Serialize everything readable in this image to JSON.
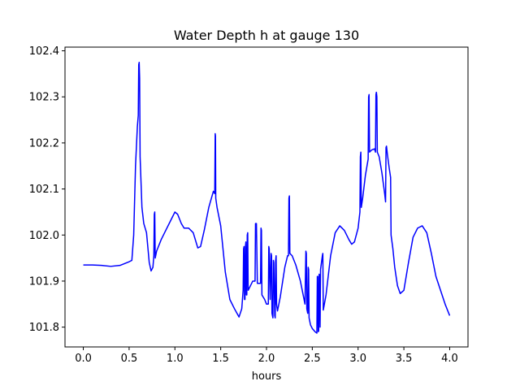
{
  "chart_data": {
    "type": "line",
    "title": "Water Depth h at gauge 130",
    "xlabel": "hours",
    "ylabel": "",
    "xlim": [
      -0.2,
      4.2
    ],
    "ylim": [
      101.757,
      102.408
    ],
    "x_ticks": [
      0.0,
      0.5,
      1.0,
      1.5,
      2.0,
      2.5,
      3.0,
      3.5,
      4.0
    ],
    "x_tick_labels": [
      "0.0",
      "0.5",
      "1.0",
      "1.5",
      "2.0",
      "2.5",
      "3.0",
      "3.5",
      "4.0"
    ],
    "y_ticks": [
      101.8,
      101.9,
      102.0,
      102.1,
      102.2,
      102.3,
      102.4
    ],
    "y_tick_labels": [
      "101.8",
      "101.9",
      "102.0",
      "102.1",
      "102.2",
      "102.3",
      "102.4"
    ],
    "grid": false,
    "legend": "none",
    "series": [
      {
        "color": "#0000ff",
        "points": [
          [
            0.0,
            101.935
          ],
          [
            0.1,
            101.935
          ],
          [
            0.2,
            101.934
          ],
          [
            0.3,
            101.932
          ],
          [
            0.4,
            101.934
          ],
          [
            0.45,
            101.938
          ],
          [
            0.5,
            101.942
          ],
          [
            0.53,
            101.945
          ],
          [
            0.55,
            102.0
          ],
          [
            0.57,
            102.15
          ],
          [
            0.59,
            102.235
          ],
          [
            0.6,
            102.26
          ],
          [
            0.605,
            102.37
          ],
          [
            0.61,
            102.375
          ],
          [
            0.615,
            102.34
          ],
          [
            0.62,
            102.17
          ],
          [
            0.64,
            102.06
          ],
          [
            0.66,
            102.025
          ],
          [
            0.69,
            102.005
          ],
          [
            0.72,
            101.94
          ],
          [
            0.74,
            101.922
          ],
          [
            0.76,
            101.93
          ],
          [
            0.77,
            101.955
          ],
          [
            0.775,
            102.045
          ],
          [
            0.78,
            102.05
          ],
          [
            0.785,
            101.95
          ],
          [
            0.8,
            101.965
          ],
          [
            0.85,
            101.99
          ],
          [
            0.9,
            102.01
          ],
          [
            0.95,
            102.03
          ],
          [
            1.0,
            102.05
          ],
          [
            1.03,
            102.045
          ],
          [
            1.07,
            102.025
          ],
          [
            1.1,
            102.015
          ],
          [
            1.15,
            102.015
          ],
          [
            1.2,
            102.005
          ],
          [
            1.25,
            101.972
          ],
          [
            1.28,
            101.975
          ],
          [
            1.32,
            102.01
          ],
          [
            1.37,
            102.06
          ],
          [
            1.42,
            102.095
          ],
          [
            1.435,
            102.09
          ],
          [
            1.44,
            102.22
          ],
          [
            1.443,
            102.215
          ],
          [
            1.446,
            102.08
          ],
          [
            1.46,
            102.06
          ],
          [
            1.5,
            102.02
          ],
          [
            1.55,
            101.92
          ],
          [
            1.6,
            101.86
          ],
          [
            1.65,
            101.84
          ],
          [
            1.7,
            101.822
          ],
          [
            1.73,
            101.84
          ],
          [
            1.745,
            101.88
          ],
          [
            1.75,
            101.97
          ],
          [
            1.755,
            101.975
          ],
          [
            1.76,
            101.86
          ],
          [
            1.765,
            101.86
          ],
          [
            1.77,
            101.975
          ],
          [
            1.775,
            101.985
          ],
          [
            1.78,
            101.87
          ],
          [
            1.785,
            101.87
          ],
          [
            1.79,
            102.0
          ],
          [
            1.795,
            102.005
          ],
          [
            1.8,
            101.88
          ],
          [
            1.85,
            101.9
          ],
          [
            1.875,
            101.9
          ],
          [
            1.88,
            102.025
          ],
          [
            1.89,
            102.025
          ],
          [
            1.9,
            101.895
          ],
          [
            1.935,
            101.895
          ],
          [
            1.94,
            102.015
          ],
          [
            1.945,
            102.01
          ],
          [
            1.95,
            101.87
          ],
          [
            1.98,
            101.86
          ],
          [
            2.0,
            101.85
          ],
          [
            2.02,
            101.85
          ],
          [
            2.025,
            101.975
          ],
          [
            2.03,
            101.97
          ],
          [
            2.04,
            101.86
          ],
          [
            2.05,
            101.96
          ],
          [
            2.055,
            101.955
          ],
          [
            2.06,
            101.83
          ],
          [
            2.07,
            101.82
          ],
          [
            2.075,
            101.945
          ],
          [
            2.08,
            101.94
          ],
          [
            2.09,
            101.825
          ],
          [
            2.095,
            101.82
          ],
          [
            2.1,
            101.945
          ],
          [
            2.105,
            101.955
          ],
          [
            2.11,
            101.85
          ],
          [
            2.12,
            101.835
          ],
          [
            2.15,
            101.865
          ],
          [
            2.2,
            101.93
          ],
          [
            2.23,
            101.955
          ],
          [
            2.24,
            101.955
          ],
          [
            2.245,
            102.08
          ],
          [
            2.25,
            102.085
          ],
          [
            2.255,
            101.96
          ],
          [
            2.28,
            101.955
          ],
          [
            2.32,
            101.935
          ],
          [
            2.37,
            101.9
          ],
          [
            2.42,
            101.85
          ],
          [
            2.43,
            101.965
          ],
          [
            2.435,
            101.96
          ],
          [
            2.44,
            101.84
          ],
          [
            2.45,
            101.83
          ],
          [
            2.455,
            101.93
          ],
          [
            2.46,
            101.925
          ],
          [
            2.465,
            101.82
          ],
          [
            2.48,
            101.805
          ],
          [
            2.5,
            101.797
          ],
          [
            2.53,
            101.79
          ],
          [
            2.55,
            101.787
          ],
          [
            2.555,
            101.91
          ],
          [
            2.56,
            101.91
          ],
          [
            2.565,
            101.79
          ],
          [
            2.57,
            101.792
          ],
          [
            2.575,
            101.915
          ],
          [
            2.58,
            101.91
          ],
          [
            2.585,
            101.8
          ],
          [
            2.59,
            101.925
          ],
          [
            2.6,
            101.94
          ],
          [
            2.61,
            101.955
          ],
          [
            2.615,
            101.96
          ],
          [
            2.62,
            101.837
          ],
          [
            2.65,
            101.87
          ],
          [
            2.7,
            101.955
          ],
          [
            2.75,
            102.005
          ],
          [
            2.8,
            102.02
          ],
          [
            2.85,
            102.01
          ],
          [
            2.9,
            101.99
          ],
          [
            2.93,
            101.98
          ],
          [
            2.96,
            101.985
          ],
          [
            3.0,
            102.015
          ],
          [
            3.02,
            102.05
          ],
          [
            3.025,
            102.17
          ],
          [
            3.03,
            102.18
          ],
          [
            3.035,
            102.06
          ],
          [
            3.05,
            102.08
          ],
          [
            3.08,
            102.13
          ],
          [
            3.11,
            102.165
          ],
          [
            3.115,
            102.3
          ],
          [
            3.12,
            102.305
          ],
          [
            3.125,
            102.18
          ],
          [
            3.15,
            102.185
          ],
          [
            3.18,
            102.187
          ],
          [
            3.19,
            102.18
          ],
          [
            3.195,
            102.305
          ],
          [
            3.2,
            102.31
          ],
          [
            3.205,
            102.3
          ],
          [
            3.21,
            102.18
          ],
          [
            3.23,
            102.17
          ],
          [
            3.26,
            102.135
          ],
          [
            3.29,
            102.09
          ],
          [
            3.3,
            102.072
          ],
          [
            3.305,
            102.19
          ],
          [
            3.31,
            102.193
          ],
          [
            3.32,
            102.175
          ],
          [
            3.34,
            102.145
          ],
          [
            3.355,
            102.125
          ],
          [
            3.36,
            102.0
          ],
          [
            3.38,
            101.97
          ],
          [
            3.4,
            101.93
          ],
          [
            3.43,
            101.89
          ],
          [
            3.46,
            101.873
          ],
          [
            3.5,
            101.88
          ],
          [
            3.55,
            101.94
          ],
          [
            3.6,
            101.995
          ],
          [
            3.65,
            102.015
          ],
          [
            3.7,
            102.02
          ],
          [
            3.75,
            102.005
          ],
          [
            3.8,
            101.96
          ],
          [
            3.85,
            101.91
          ],
          [
            3.9,
            101.88
          ],
          [
            3.95,
            101.85
          ],
          [
            4.0,
            101.825
          ]
        ]
      }
    ]
  }
}
